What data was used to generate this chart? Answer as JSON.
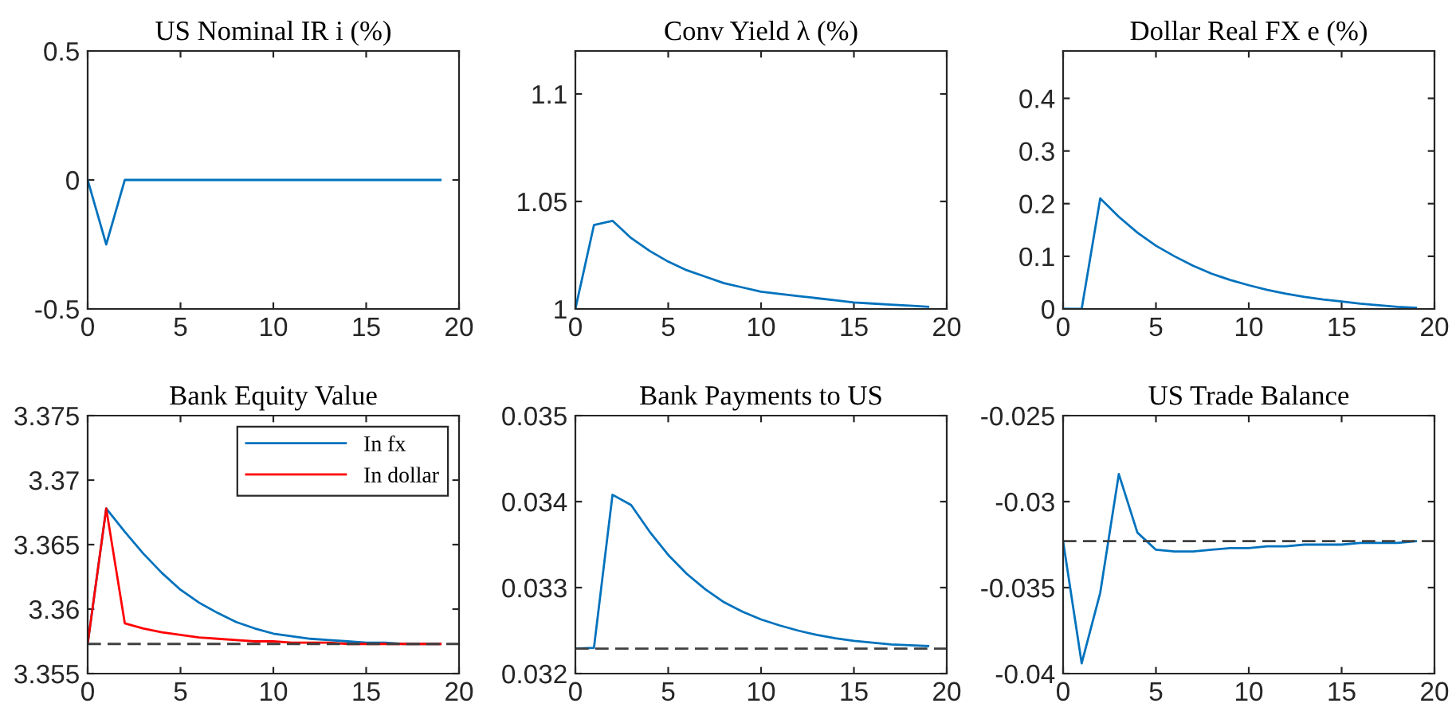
{
  "chart_data": [
    {
      "type": "line",
      "title": "US Nominal IR i (%)",
      "x": [
        0,
        1,
        2,
        3,
        4,
        5,
        6,
        7,
        8,
        9,
        10,
        11,
        12,
        13,
        14,
        15,
        16,
        17,
        18,
        19
      ],
      "xlim": [
        0,
        20
      ],
      "xticks": [
        0,
        5,
        10,
        15,
        20
      ],
      "ylim": [
        -0.5,
        0.5
      ],
      "yticks": [
        -0.5,
        0,
        0.5
      ],
      "series": [
        {
          "color": "#0072bd",
          "values": [
            0,
            -0.25,
            0,
            0,
            0,
            0,
            0,
            0,
            0,
            0,
            0,
            0,
            0,
            0,
            0,
            0,
            0,
            0,
            0,
            0
          ]
        }
      ],
      "grid": false,
      "legend": false
    },
    {
      "type": "line",
      "title": "Conv Yield λ (%)",
      "x": [
        0,
        1,
        2,
        3,
        4,
        5,
        6,
        7,
        8,
        9,
        10,
        11,
        12,
        13,
        14,
        15,
        16,
        17,
        18,
        19
      ],
      "xlim": [
        0,
        20
      ],
      "xticks": [
        0,
        5,
        10,
        15,
        20
      ],
      "ylim": [
        1,
        1.12
      ],
      "yticks": [
        1,
        1.05,
        1.1
      ],
      "series": [
        {
          "color": "#0072bd",
          "values": [
            1.0,
            1.039,
            1.041,
            1.033,
            1.027,
            1.022,
            1.018,
            1.015,
            1.012,
            1.01,
            1.008,
            1.007,
            1.006,
            1.005,
            1.004,
            1.003,
            1.0025,
            1.002,
            1.0015,
            1.001
          ]
        }
      ],
      "grid": false,
      "legend": false
    },
    {
      "type": "line",
      "title": "Dollar Real FX e (%)",
      "x": [
        0,
        1,
        2,
        3,
        4,
        5,
        6,
        7,
        8,
        9,
        10,
        11,
        12,
        13,
        14,
        15,
        16,
        17,
        18,
        19
      ],
      "xlim": [
        0,
        20
      ],
      "xticks": [
        0,
        5,
        10,
        15,
        20
      ],
      "ylim": [
        0,
        0.49
      ],
      "yticks": [
        0,
        0.1,
        0.2,
        0.3,
        0.4
      ],
      "series": [
        {
          "color": "#0072bd",
          "values": [
            0,
            0,
            0.21,
            0.175,
            0.145,
            0.12,
            0.1,
            0.082,
            0.067,
            0.055,
            0.045,
            0.036,
            0.029,
            0.023,
            0.018,
            0.014,
            0.01,
            0.007,
            0.004,
            0.002
          ]
        }
      ],
      "grid": false,
      "legend": false
    },
    {
      "type": "line",
      "title": "Bank Equity Value",
      "x": [
        0,
        1,
        2,
        3,
        4,
        5,
        6,
        7,
        8,
        9,
        10,
        11,
        12,
        13,
        14,
        15,
        16,
        17,
        18,
        19
      ],
      "xlim": [
        0,
        20
      ],
      "xticks": [
        0,
        5,
        10,
        15,
        20
      ],
      "ylim": [
        3.355,
        3.375
      ],
      "yticks": [
        3.355,
        3.36,
        3.365,
        3.37,
        3.375
      ],
      "series": [
        {
          "name": "In fx",
          "color": "#0072bd",
          "values": [
            3.3573,
            3.3678,
            3.366,
            3.3643,
            3.3628,
            3.3615,
            3.3605,
            3.3597,
            3.359,
            3.3585,
            3.3581,
            3.3579,
            3.3577,
            3.3576,
            3.3575,
            3.3574,
            3.3574,
            3.3573,
            3.3573,
            3.3573
          ]
        },
        {
          "name": "In dollar",
          "color": "#ff0000",
          "values": [
            3.3573,
            3.3678,
            3.3589,
            3.3585,
            3.3582,
            3.358,
            3.3578,
            3.3577,
            3.3576,
            3.3575,
            3.3575,
            3.3574,
            3.3574,
            3.3574,
            3.3573,
            3.3573,
            3.3573,
            3.3573,
            3.3573,
            3.3573
          ]
        }
      ],
      "ref_lines": [
        {
          "axis": "y",
          "value": 3.3573,
          "color": "#404040",
          "line_style": "dashed"
        }
      ],
      "grid": false,
      "legend": "top right"
    },
    {
      "type": "line",
      "title": "Bank Payments to US",
      "x": [
        0,
        1,
        2,
        3,
        4,
        5,
        6,
        7,
        8,
        9,
        10,
        11,
        12,
        13,
        14,
        15,
        16,
        17,
        18,
        19
      ],
      "xlim": [
        0,
        20
      ],
      "xticks": [
        0,
        5,
        10,
        15,
        20
      ],
      "ylim": [
        0.032,
        0.035
      ],
      "yticks": [
        0.032,
        0.033,
        0.034,
        0.035
      ],
      "series": [
        {
          "color": "#0072bd",
          "values": [
            0.03229,
            0.0323,
            0.03408,
            0.03396,
            0.03365,
            0.03338,
            0.03316,
            0.03298,
            0.03283,
            0.03272,
            0.03263,
            0.03256,
            0.0325,
            0.03245,
            0.03241,
            0.03238,
            0.03236,
            0.03234,
            0.03233,
            0.03232
          ]
        }
      ],
      "ref_lines": [
        {
          "axis": "y",
          "value": 0.03229,
          "color": "#404040",
          "line_style": "dashed"
        }
      ],
      "grid": false,
      "legend": false
    },
    {
      "type": "line",
      "title": "US Trade Balance",
      "x": [
        0,
        1,
        2,
        3,
        4,
        5,
        6,
        7,
        8,
        9,
        10,
        11,
        12,
        13,
        14,
        15,
        16,
        17,
        18,
        19
      ],
      "xlim": [
        0,
        20
      ],
      "xticks": [
        0,
        5,
        10,
        15,
        20
      ],
      "ylim": [
        -0.04,
        -0.025
      ],
      "yticks": [
        -0.04,
        -0.035,
        -0.03,
        -0.025
      ],
      "series": [
        {
          "color": "#0072bd",
          "values": [
            -0.0323,
            -0.0394,
            -0.0353,
            -0.0284,
            -0.0318,
            -0.0328,
            -0.0329,
            -0.0329,
            -0.0328,
            -0.0327,
            -0.0327,
            -0.0326,
            -0.0326,
            -0.0325,
            -0.0325,
            -0.0325,
            -0.0324,
            -0.0324,
            -0.0324,
            -0.0323
          ]
        }
      ],
      "ref_lines": [
        {
          "axis": "y",
          "value": -0.0323,
          "color": "#404040",
          "line_style": "dashed"
        }
      ],
      "grid": false,
      "legend": false
    }
  ]
}
